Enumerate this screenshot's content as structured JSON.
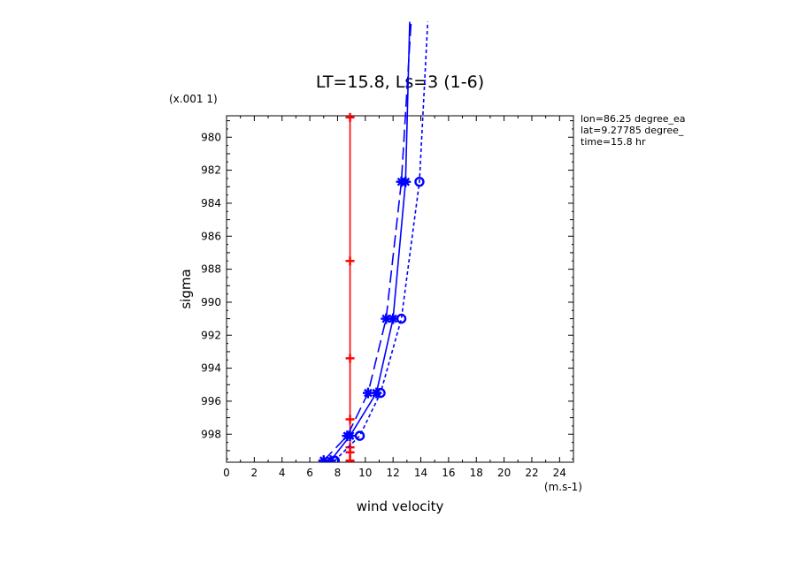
{
  "chart_data": {
    "type": "line",
    "title": "LT=15.8, Ls=3 (1-6)",
    "xlabel": "wind velocity",
    "ylabel": "sigma",
    "x_units": "(m.s-1)",
    "y_units": "(x.001 1)",
    "xlim": [
      0,
      25
    ],
    "ylim": [
      999.7,
      978.7
    ],
    "x_ticks": [
      0,
      2,
      4,
      6,
      8,
      10,
      12,
      14,
      16,
      18,
      20,
      22,
      24
    ],
    "y_ticks": [
      980,
      982,
      984,
      986,
      988,
      990,
      992,
      994,
      996,
      998
    ],
    "info_lines": [
      "lon=86.25 degree_ea",
      "lat=9.27785 degree_",
      "time=15.8 hr"
    ],
    "grid": false,
    "series": [
      {
        "color": "#ff0000",
        "dash": "solid",
        "marker": "plus",
        "x": [
          8.9,
          8.9,
          8.9,
          8.9,
          8.9,
          8.9,
          8.9
        ],
        "y": [
          978.8,
          987.5,
          993.4,
          997.1,
          998.8,
          999.1,
          999.6
        ]
      },
      {
        "color": "#0000ff",
        "dash": "solid",
        "marker": "star",
        "x": [
          7.5,
          8.9,
          10.8,
          12.0,
          12.9,
          13.2
        ],
        "y": [
          999.6,
          998.1,
          995.5,
          991.0,
          982.7,
          973.0
        ]
      },
      {
        "color": "#0000ff",
        "dash": "longdash",
        "marker": "star",
        "x": [
          7.0,
          8.7,
          10.2,
          11.5,
          12.6,
          13.3
        ],
        "y": [
          999.6,
          998.1,
          995.5,
          991.0,
          982.7,
          973.0
        ]
      },
      {
        "color": "#0000ff",
        "dash": "shortdash",
        "marker": "circle",
        "x": [
          7.8,
          9.6,
          11.1,
          12.6,
          13.9,
          14.5
        ],
        "y": [
          999.6,
          998.1,
          995.5,
          991.0,
          982.7,
          973.0
        ]
      }
    ]
  }
}
